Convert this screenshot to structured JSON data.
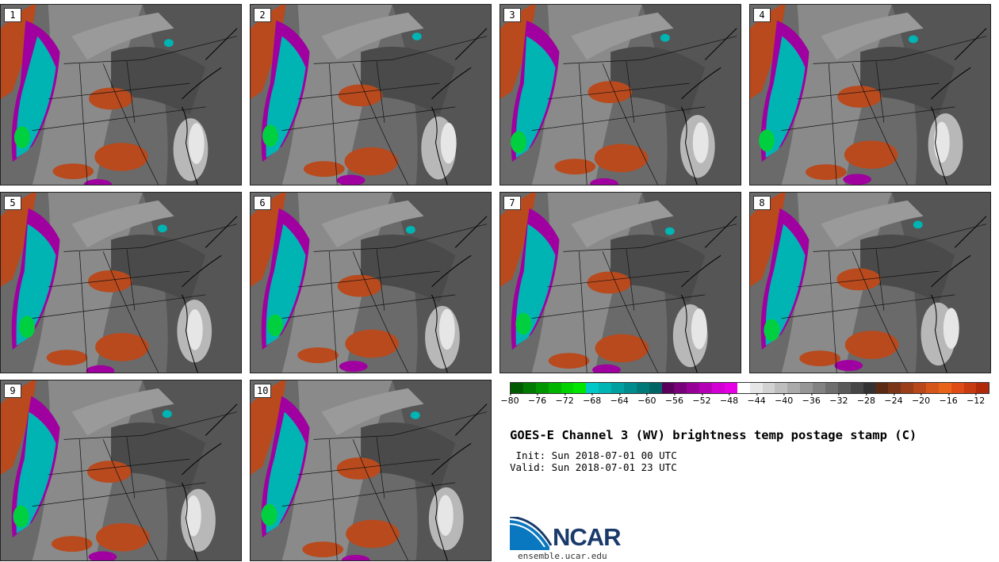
{
  "title": "GOES-E Channel 3 (WV) brightness temp postage stamp (C)",
  "init": " Init: Sun 2018-07-01 00 UTC",
  "valid": "Valid: Sun 2018-07-01 23 UTC",
  "website": "ensemble.ucar.edu",
  "logo_text": "NCAR",
  "members": [
    "1",
    "2",
    "3",
    "4",
    "5",
    "6",
    "7",
    "8",
    "9",
    "10"
  ],
  "colorbar": {
    "ticks": [
      "−80",
      "−76",
      "−72",
      "−68",
      "−64",
      "−60",
      "−56",
      "−52",
      "−48",
      "−44",
      "−40",
      "−36",
      "−32",
      "−28",
      "−24",
      "−20",
      "−16",
      "−12"
    ],
    "tick_values": [
      -80,
      -76,
      -72,
      -68,
      -64,
      -60,
      -56,
      -52,
      -48,
      -44,
      -40,
      -36,
      -32,
      -28,
      -24,
      -20,
      -16,
      -12
    ],
    "min": -80,
    "max": -10,
    "colors": [
      "#005a00",
      "#007a00",
      "#009600",
      "#00b400",
      "#00d200",
      "#00e600",
      "#00c8c8",
      "#00b4b4",
      "#00a0a0",
      "#008c8c",
      "#007878",
      "#006464",
      "#5a005a",
      "#780078",
      "#960096",
      "#b400b4",
      "#d200d2",
      "#e600e6",
      "#ffffff",
      "#e6e6e6",
      "#d2d2d2",
      "#bebebe",
      "#aaaaaa",
      "#969696",
      "#828282",
      "#6e6e6e",
      "#5a5a5a",
      "#464646",
      "#323232",
      "#5a2a14",
      "#7a3418",
      "#9a3e1a",
      "#b8481a",
      "#d4561a",
      "#e8641a",
      "#e04a14",
      "#c83a10",
      "#b02a0a"
    ]
  },
  "colors": {
    "moist": "#00b4b4",
    "dry": "#b84a1e",
    "cold": "#a000a0",
    "bright": "#e6e6e6"
  },
  "icons": [
    "ncar-logo-icon"
  ]
}
